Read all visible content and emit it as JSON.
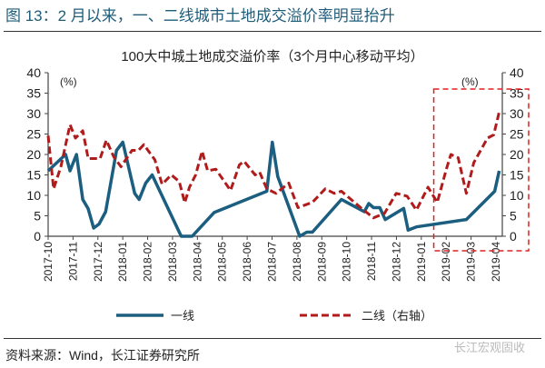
{
  "figure_title": "图 13：2 月以来，一、二线城市土地成交溢价率明显抬升",
  "source": "资料来源：Wind，长江证券研究所",
  "watermark": "长江宏观固收",
  "chart_data": {
    "type": "line",
    "title": "100大中城土地成交溢价率（3个月中心移动平均）",
    "left_unit": "(%)",
    "right_unit": "(%)",
    "x_unit": "months since 2017-10",
    "xlim": [
      0,
      18.2
    ],
    "ylim_left": [
      0,
      40
    ],
    "ylim_right": [
      0,
      40
    ],
    "yticks": [
      0,
      5,
      10,
      15,
      20,
      25,
      30,
      35,
      40
    ],
    "xtick_labels": [
      "2017-10",
      "2017-11",
      "2017-12",
      "2018-01",
      "2018-02",
      "2018-03",
      "2018-04",
      "2018-05",
      "2018-06",
      "2018-07",
      "2018-08",
      "2018-09",
      "2018-10",
      "2018-11",
      "2018-12",
      "2019-01",
      "2019-02",
      "2019-03",
      "2019-04"
    ],
    "legend_position": "bottom",
    "highlight_box": {
      "x_from": 15.5,
      "y_from": 0,
      "y_to": 36,
      "color": "#e02020"
    },
    "series": [
      {
        "name": "一线",
        "axis": "left",
        "color": "#1b5e80",
        "style": "solid",
        "x": [
          0,
          0.7,
          0.88,
          1.14,
          1.39,
          1.61,
          1.83,
          2.05,
          2.31,
          2.75,
          3.0,
          3.48,
          3.66,
          3.92,
          4.18,
          5.35,
          5.79,
          6.67,
          8.79,
          9.01,
          9.23,
          10.11,
          10.4,
          10.62,
          11.79,
          12.71,
          12.89,
          13.08,
          13.33,
          13.55,
          14.29,
          14.47,
          14.8,
          16.81,
          17.95,
          18.13
        ],
        "y": [
          16,
          20,
          16,
          20,
          9,
          6.7,
          2,
          3,
          6,
          21,
          23,
          10.5,
          9,
          13,
          15,
          0,
          0,
          5.8,
          11,
          23,
          14.6,
          0,
          1,
          1,
          9,
          6,
          8,
          7,
          7,
          4.1,
          6.8,
          1.5,
          2.3,
          4.1,
          11,
          16
        ]
      },
      {
        "name": "二线（右轴）",
        "axis": "right",
        "color": "#b01c1c",
        "style": "dashed",
        "x": [
          0,
          0.22,
          0.51,
          0.88,
          1.1,
          1.39,
          1.61,
          2.09,
          2.34,
          2.64,
          2.93,
          3.37,
          3.63,
          3.85,
          4.29,
          4.58,
          4.95,
          5.27,
          5.49,
          5.68,
          5.93,
          6.19,
          6.41,
          6.74,
          7.33,
          7.69,
          7.88,
          8.32,
          8.5,
          8.79,
          9.16,
          9.67,
          10.04,
          10.62,
          11.14,
          11.5,
          11.79,
          12.6,
          13.08,
          13.52,
          13.99,
          14.43,
          14.8,
          15.27,
          15.64,
          16.01,
          16.19,
          16.48,
          16.81,
          17.11,
          17.66,
          17.91,
          18.13
        ],
        "y": [
          24.6,
          11.6,
          17,
          27.3,
          24,
          25.8,
          19,
          19,
          23.5,
          19.4,
          17,
          21,
          21,
          22.4,
          18.7,
          12.7,
          15,
          13.4,
          8.2,
          12,
          15,
          20.8,
          16,
          16.4,
          11.2,
          17.5,
          18.3,
          15,
          15.7,
          11.6,
          10.5,
          13,
          7,
          8.3,
          11.6,
          10.5,
          11,
          6.8,
          4.5,
          5.6,
          10.5,
          9.8,
          6.4,
          12,
          8.3,
          16.5,
          20,
          19.2,
          10.5,
          18,
          24,
          24.8,
          30.4
        ]
      }
    ]
  }
}
